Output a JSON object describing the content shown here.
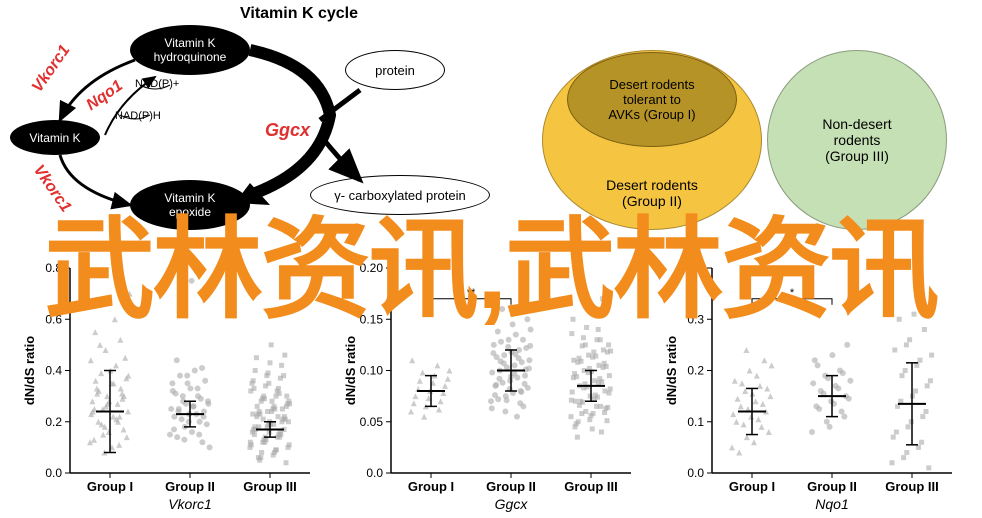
{
  "cycle": {
    "title": "Vitamin K cycle",
    "nodes": {
      "hydroquinone": "Vitamin K\nhydroquinone",
      "epoxide": "Vitamin K\nepoxide",
      "vitamink": "Vitamin K",
      "protein": "protein",
      "carboxy": "γ- carboxylated protein"
    },
    "enzymes": {
      "vkorc1": "Vkorc1",
      "nqo1": "Nqo1",
      "ggcx": "Ggcx"
    },
    "cofactors": {
      "nadp_plus": "NAD(P)+",
      "nadp_h": "NAD(P)H"
    }
  },
  "venn": {
    "group1": {
      "label": "Desert rodents\ntolerant to\nAVKs (Group I)",
      "color": "#b59326",
      "border": "#8a6d1a"
    },
    "group2": {
      "label": "Desert rodents\n(Group II)",
      "color": "#f5c542",
      "border": "#c79a1e"
    },
    "group3": {
      "label": "Non-desert\nrodents\n(Group III)",
      "color": "#c5e0b4",
      "border": "#9cc283"
    }
  },
  "watermark_text": "武林资讯,武林资讯",
  "charts": [
    {
      "gene": "Vkorc1",
      "ylabel": "dN/dS ratio",
      "ylim": [
        0,
        0.8
      ],
      "yticks": [
        0,
        0.2,
        0.4,
        0.6,
        0.8
      ],
      "groups": [
        "Group I",
        "Group II",
        "Group III"
      ],
      "means": [
        0.24,
        0.23,
        0.17
      ],
      "sd": [
        0.16,
        0.05,
        0.03
      ],
      "jitter": [
        [
          0.12,
          0.18,
          0.22,
          0.25,
          0.28,
          0.3,
          0.32,
          0.35,
          0.38,
          0.15,
          0.2,
          0.24,
          0.27,
          0.29,
          0.31,
          0.1,
          0.14,
          0.19,
          0.21,
          0.23,
          0.26,
          0.33,
          0.36,
          0.4,
          0.45,
          0.5,
          0.6,
          0.7,
          0.08,
          0.11,
          0.13,
          0.16,
          0.17,
          0.2,
          0.22,
          0.24,
          0.25,
          0.27,
          0.28,
          0.3,
          0.31,
          0.33,
          0.35,
          0.37,
          0.39,
          0.42,
          0.44,
          0.48,
          0.52,
          0.55
        ],
        [
          0.15,
          0.18,
          0.2,
          0.22,
          0.23,
          0.24,
          0.25,
          0.26,
          0.27,
          0.28,
          0.3,
          0.32,
          0.35,
          0.12,
          0.14,
          0.16,
          0.19,
          0.21,
          0.23,
          0.25,
          0.27,
          0.29,
          0.31,
          0.33,
          0.36,
          0.38,
          0.4,
          0.1,
          0.13,
          0.15,
          0.17,
          0.2,
          0.22,
          0.24,
          0.26,
          0.28,
          0.3,
          0.33,
          0.35,
          0.38,
          0.41,
          0.44,
          0.75
        ],
        [
          0.1,
          0.12,
          0.14,
          0.15,
          0.16,
          0.17,
          0.18,
          0.19,
          0.2,
          0.21,
          0.22,
          0.23,
          0.24,
          0.25,
          0.26,
          0.28,
          0.3,
          0.08,
          0.09,
          0.11,
          0.13,
          0.15,
          0.17,
          0.19,
          0.21,
          0.23,
          0.25,
          0.27,
          0.29,
          0.31,
          0.33,
          0.35,
          0.38,
          0.06,
          0.07,
          0.1,
          0.12,
          0.14,
          0.16,
          0.18,
          0.2,
          0.22,
          0.24,
          0.26,
          0.28,
          0.3,
          0.32,
          0.34,
          0.37,
          0.4,
          0.43,
          0.46,
          0.05,
          0.08,
          0.11,
          0.13,
          0.15,
          0.17,
          0.19,
          0.21,
          0.23,
          0.25,
          0.27,
          0.29,
          0.32,
          0.35,
          0.38,
          0.42,
          0.45,
          0.5,
          0.04,
          0.06,
          0.09,
          0.12,
          0.14,
          0.16,
          0.18,
          0.2,
          0.22,
          0.24,
          0.26,
          0.28,
          0.3,
          0.33,
          0.36,
          0.39
        ]
      ],
      "brackets_hidden": true
    },
    {
      "gene": "Ggcx",
      "ylabel": "dN/dS ratio",
      "ylim": [
        0,
        0.2
      ],
      "yticks": [
        0,
        0.05,
        0.1,
        0.15,
        0.2
      ],
      "groups": [
        "Group I",
        "Group II",
        "Group III"
      ],
      "means": [
        0.08,
        0.1,
        0.085
      ],
      "sd": [
        0.015,
        0.02,
        0.015
      ],
      "jitter": [
        [
          0.06,
          0.065,
          0.07,
          0.075,
          0.08,
          0.085,
          0.09,
          0.095,
          0.1,
          0.055,
          0.062,
          0.068,
          0.073,
          0.078,
          0.082,
          0.088,
          0.092,
          0.098,
          0.105,
          0.11
        ],
        [
          0.07,
          0.075,
          0.08,
          0.085,
          0.09,
          0.095,
          0.1,
          0.105,
          0.11,
          0.115,
          0.12,
          0.125,
          0.13,
          0.065,
          0.072,
          0.078,
          0.083,
          0.088,
          0.093,
          0.098,
          0.103,
          0.108,
          0.113,
          0.118,
          0.122,
          0.128,
          0.135,
          0.14,
          0.06,
          0.068,
          0.076,
          0.082,
          0.087,
          0.092,
          0.097,
          0.102,
          0.107,
          0.112,
          0.117,
          0.123,
          0.13,
          0.138,
          0.145,
          0.15,
          0.16,
          0.055,
          0.063,
          0.071,
          0.079,
          0.086,
          0.094,
          0.101,
          0.109,
          0.116,
          0.124
        ],
        [
          0.055,
          0.06,
          0.065,
          0.07,
          0.075,
          0.08,
          0.085,
          0.09,
          0.095,
          0.1,
          0.105,
          0.11,
          0.115,
          0.12,
          0.05,
          0.058,
          0.064,
          0.069,
          0.074,
          0.079,
          0.084,
          0.089,
          0.094,
          0.099,
          0.104,
          0.109,
          0.114,
          0.119,
          0.125,
          0.13,
          0.045,
          0.052,
          0.059,
          0.066,
          0.072,
          0.078,
          0.083,
          0.088,
          0.093,
          0.098,
          0.103,
          0.108,
          0.113,
          0.118,
          0.124,
          0.13,
          0.136,
          0.142,
          0.04,
          0.048,
          0.056,
          0.063,
          0.07,
          0.076,
          0.082,
          0.087,
          0.092,
          0.097,
          0.102,
          0.107,
          0.112,
          0.118,
          0.125,
          0.132,
          0.14,
          0.15,
          0.16,
          0.17,
          0.035,
          0.043,
          0.051,
          0.058,
          0.065,
          0.071
        ]
      ],
      "brackets": [
        {
          "g1": 0,
          "g2": 1,
          "y": 0.17,
          "label": "**"
        }
      ]
    },
    {
      "gene": "Nqo1",
      "ylabel": "dN/dS ratio",
      "ylim": [
        0,
        0.4
      ],
      "yticks": [
        0,
        0.1,
        0.2,
        0.3,
        0.4
      ],
      "groups": [
        "Group I",
        "Group II",
        "Group III"
      ],
      "means": [
        0.12,
        0.15,
        0.135
      ],
      "sd": [
        0.045,
        0.04,
        0.08
      ],
      "jitter": [
        [
          0.05,
          0.07,
          0.09,
          0.1,
          0.11,
          0.12,
          0.13,
          0.14,
          0.15,
          0.16,
          0.17,
          0.18,
          0.2,
          0.22,
          0.04,
          0.06,
          0.08,
          0.095,
          0.105,
          0.115,
          0.125,
          0.135,
          0.145,
          0.155,
          0.165,
          0.175,
          0.19,
          0.21,
          0.24
        ],
        [
          0.08,
          0.1,
          0.12,
          0.13,
          0.14,
          0.15,
          0.16,
          0.17,
          0.18,
          0.19,
          0.2,
          0.22,
          0.09,
          0.11,
          0.125,
          0.135,
          0.145,
          0.155,
          0.165,
          0.175,
          0.185,
          0.195,
          0.21,
          0.23,
          0.25
        ],
        [
          0.02,
          0.04,
          0.06,
          0.08,
          0.1,
          0.12,
          0.14,
          0.16,
          0.18,
          0.2,
          0.22,
          0.24,
          0.26,
          0.28,
          0.3,
          0.31,
          0.01,
          0.03,
          0.05,
          0.07,
          0.09,
          0.11,
          0.13,
          0.15,
          0.17,
          0.19,
          0.21,
          0.23,
          0.25
        ]
      ],
      "brackets": [
        {
          "g1": 0,
          "g2": 1,
          "y": 0.34,
          "label": "*"
        }
      ]
    }
  ]
}
